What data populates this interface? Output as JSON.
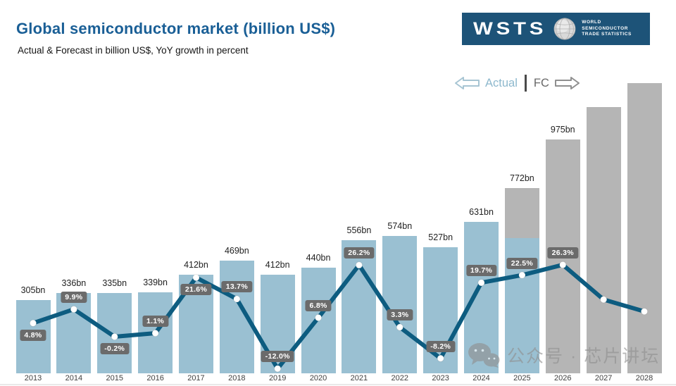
{
  "header": {
    "title": "Global semiconductor market (billion US$)",
    "subtitle": "Actual & Forecast in billion US$, YoY growth in percent"
  },
  "logo": {
    "acronym": "WSTS",
    "lines": [
      "WORLD",
      "SEMICONDUCTOR",
      "TRADE STATISTICS"
    ],
    "bg_color": "#1d5378"
  },
  "legend": {
    "actual_label": "Actual",
    "fc_label": "FC",
    "left_arrow_icon": "arrow-left-outline",
    "right_arrow_icon": "arrow-right-outline"
  },
  "watermark": {
    "icon": "wechat-icon",
    "text": "公众号 · 芯片讲坛"
  },
  "colors": {
    "title": "#1a5f96",
    "bar_actual": "#9ac0d2",
    "bar_forecast": "#b5b5b5",
    "line": "#0d5c80",
    "dot": "#ffffff",
    "badge_bg": "#6b6b6b",
    "badge_text": "#ffffff",
    "legend_actual": "#8db8cd",
    "legend_fc": "#686868"
  },
  "chart_data": {
    "type": "bar",
    "subtype": "combo-bar-line",
    "title": "Global semiconductor market (billion US$)",
    "subtitle": "Actual & Forecast in billion US$, YoY growth in percent",
    "categories": [
      "2013",
      "2014",
      "2015",
      "2016",
      "2017",
      "2018",
      "2019",
      "2020",
      "2021",
      "2022",
      "2023",
      "2024",
      "2025",
      "2026",
      "2027",
      "2028"
    ],
    "series": [
      {
        "name": "Market size (billion US$)",
        "type": "bar",
        "values": [
          305,
          336,
          335,
          339,
          412,
          469,
          412,
          440,
          556,
          574,
          527,
          631,
          772,
          975,
          1110,
          1210
        ],
        "value_labels": [
          "305bn",
          "336bn",
          "335bn",
          "339bn",
          "412bn",
          "469bn",
          "412bn",
          "440bn",
          "556bn",
          "574bn",
          "527bn",
          "631bn",
          "772bn",
          "975bn",
          null,
          null
        ],
        "values_estimated_from_pixels": [
          false,
          false,
          false,
          false,
          false,
          false,
          false,
          false,
          false,
          false,
          false,
          false,
          false,
          false,
          true,
          true
        ],
        "segments": [
          "actual",
          "actual",
          "actual",
          "actual",
          "actual",
          "actual",
          "actual",
          "actual",
          "actual",
          "actual",
          "actual",
          "actual",
          "mixed",
          "forecast",
          "forecast",
          "forecast"
        ],
        "mixed_actual_fraction": 0.73
      },
      {
        "name": "YoY growth (%)",
        "type": "line",
        "values": [
          4.8,
          9.9,
          -0.2,
          1.1,
          21.6,
          13.7,
          -12.0,
          6.8,
          26.2,
          3.3,
          -8.2,
          19.7,
          22.5,
          26.3,
          13.5,
          9.1
        ],
        "value_labels": [
          "4.8%",
          "9.9%",
          "-0.2%",
          "1.1%",
          "21.6%",
          "13.7%",
          "-12.0%",
          "6.8%",
          "26.2%",
          "3.3%",
          "-8.2%",
          "19.7%",
          "22.5%",
          "26.3%",
          null,
          null
        ],
        "label_positions": [
          "below",
          "above",
          "below",
          "above",
          "below",
          "above",
          "above",
          "above",
          "above",
          "above",
          "above",
          "above",
          "above",
          "above",
          null,
          null
        ],
        "values_estimated_from_pixels": [
          false,
          false,
          false,
          false,
          false,
          false,
          false,
          false,
          false,
          false,
          false,
          false,
          false,
          false,
          true,
          true
        ]
      }
    ],
    "legend": {
      "actual": "Actual",
      "forecast": "FC"
    },
    "axes": {
      "x_visible": true,
      "y_visible": false,
      "gridlines": false,
      "bar_axis_origin": 0
    }
  }
}
